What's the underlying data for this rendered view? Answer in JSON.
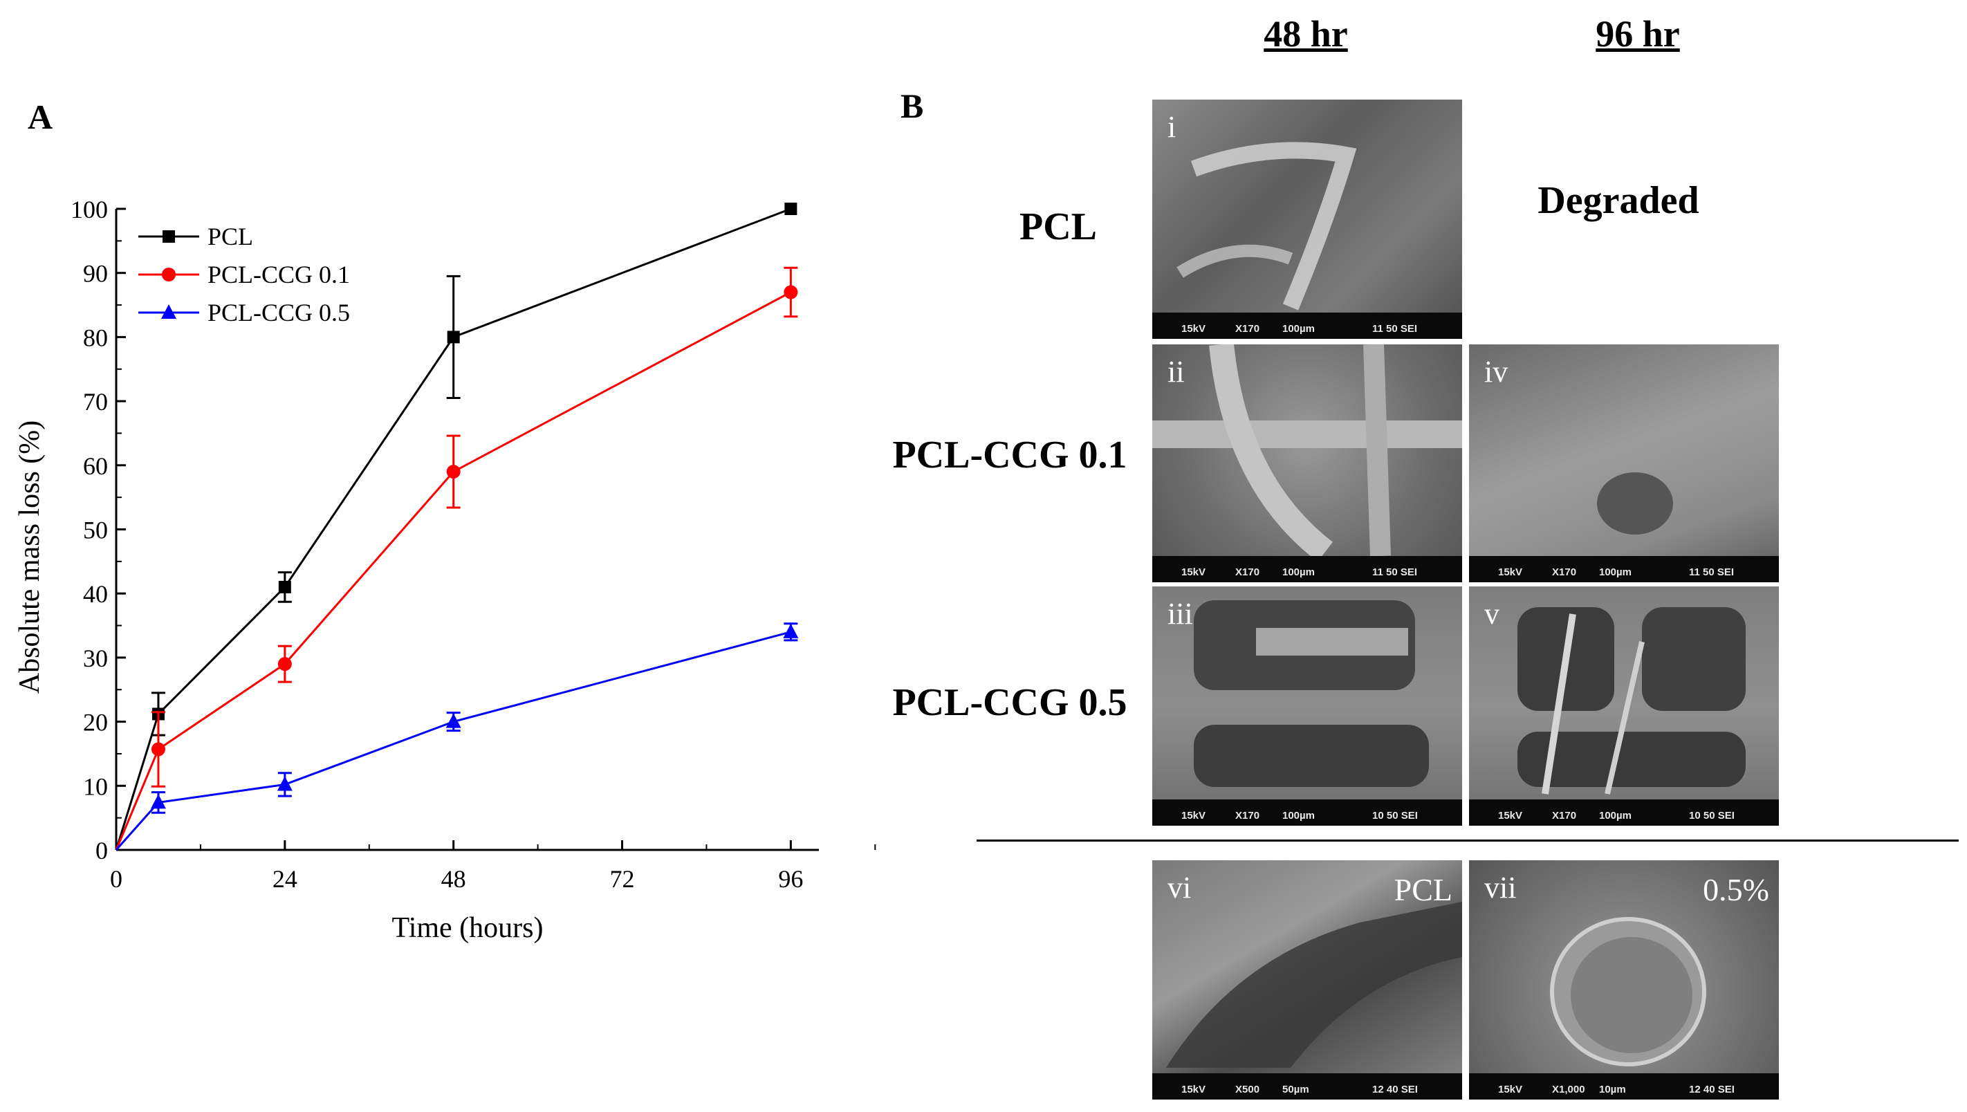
{
  "panels": {
    "a": "A",
    "b": "B"
  },
  "chart_data": {
    "type": "line",
    "x": [
      0,
      6,
      24,
      48,
      96
    ],
    "series": [
      {
        "name": "PCL",
        "color": "#000000",
        "marker": "square",
        "values": [
          0,
          21.2,
          41,
          80,
          100
        ],
        "errors": [
          0,
          3.3,
          2.3,
          9.5,
          0
        ]
      },
      {
        "name": "PCL-CCG 0.1",
        "color": "#ff0000",
        "marker": "circle",
        "values": [
          0,
          15.7,
          29,
          59,
          87
        ],
        "errors": [
          0,
          5.8,
          2.8,
          5.6,
          3.8
        ]
      },
      {
        "name": "PCL-CCG 0.5",
        "color": "#0000ff",
        "marker": "triangle",
        "values": [
          0,
          7.4,
          10.2,
          20,
          34
        ],
        "errors": [
          0,
          1.6,
          1.8,
          1.4,
          1.3
        ]
      }
    ],
    "xlabel": "Time (hours)",
    "ylabel": "Absolute mass loss (%)",
    "xlim": [
      0,
      100
    ],
    "ylim": [
      0,
      100
    ],
    "xticks": [
      0,
      24,
      48,
      72,
      96
    ],
    "yticks": [
      0,
      10,
      20,
      30,
      40,
      50,
      60,
      70,
      80,
      90,
      100
    ],
    "legend_position": "top-left"
  },
  "panel_b": {
    "col_headers": [
      "48 hr",
      "96 hr"
    ],
    "row_labels": [
      "PCL",
      "PCL-CCG 0.1",
      "PCL-CCG 0.5"
    ],
    "degraded_text": "Degraded",
    "images": [
      {
        "id": "i",
        "label": "i",
        "kv": "15kV",
        "mag": "X170",
        "scale": "100µm",
        "code": "11 50 SEI"
      },
      {
        "id": "ii",
        "label": "ii",
        "kv": "15kV",
        "mag": "X170",
        "scale": "100µm",
        "code": "11 50 SEI"
      },
      {
        "id": "iv",
        "label": "iv",
        "kv": "15kV",
        "mag": "X170",
        "scale": "100µm",
        "code": "11 50 SEI"
      },
      {
        "id": "iii",
        "label": "iii",
        "kv": "15kV",
        "mag": "X170",
        "scale": "100µm",
        "code": "10 50 SEI"
      },
      {
        "id": "v",
        "label": "v",
        "kv": "15kV",
        "mag": "X170",
        "scale": "100µm",
        "code": "10 50 SEI"
      },
      {
        "id": "vi",
        "label": "vi",
        "corner": "PCL",
        "kv": "15kV",
        "mag": "X500",
        "scale": "50µm",
        "code": "12 40 SEI"
      },
      {
        "id": "vii",
        "label": "vii",
        "corner": "0.5%",
        "kv": "15kV",
        "mag": "X1,000",
        "scale": "10µm",
        "code": "12 40 SEI"
      }
    ]
  }
}
